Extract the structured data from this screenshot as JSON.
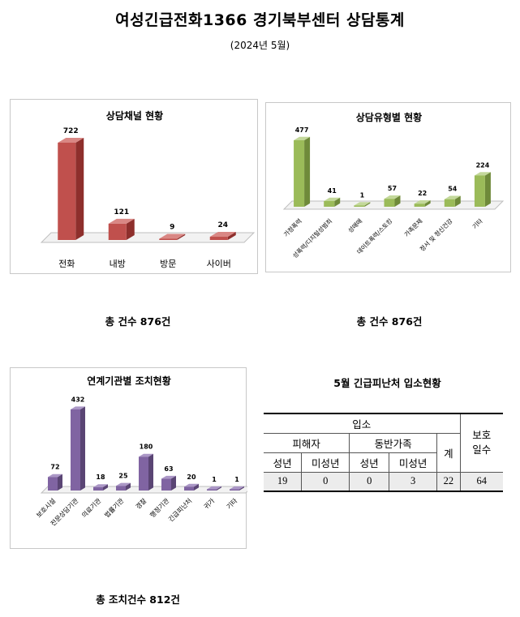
{
  "header": {
    "title": "여성긴급전화1366 경기북부센터 상담통계",
    "subtitle": "(2024년 5월)"
  },
  "chart_data": [
    {
      "type": "bar",
      "title": "상담채널 현황",
      "categories": [
        "전화",
        "내방",
        "방문",
        "사이버"
      ],
      "values": [
        722,
        121,
        9,
        24
      ],
      "ylim": [
        0,
        722
      ],
      "color": "#c0504d",
      "color_side": "#8e2f2c",
      "color_top": "#d98784",
      "legend": "none",
      "grid": false
    },
    {
      "type": "bar",
      "title": "상담유형별 현황",
      "categories": [
        "가정폭력",
        "성폭력/디지털성범죄",
        "성매매",
        "데이트폭력/스토킹",
        "가족문제",
        "정서 및 정신건강",
        "기타"
      ],
      "values": [
        477,
        41,
        1,
        57,
        22,
        54,
        224
      ],
      "ylim": [
        0,
        477
      ],
      "color": "#9bbb59",
      "color_side": "#6f8a3a",
      "color_top": "#c3d89a",
      "legend": "none",
      "grid": false
    },
    {
      "type": "bar",
      "title": "연계기관별 조치현황",
      "categories": [
        "보호시설",
        "전문상담기관",
        "의료기관",
        "법률기관",
        "경찰",
        "행정기관",
        "긴급피난처",
        "귀가",
        "기타"
      ],
      "values": [
        72,
        432,
        18,
        25,
        180,
        63,
        20,
        1,
        1
      ],
      "ylim": [
        0,
        432
      ],
      "color": "#8064a2",
      "color_side": "#5a4574",
      "color_top": "#ab97c6",
      "legend": "none",
      "grid": false
    }
  ],
  "totals": {
    "channel": "총 건수 876건",
    "type": "총 건수 876건",
    "action": "총 조치건수 812건"
  },
  "shelter": {
    "title": "5월 긴급피난처 입소현황",
    "admission": "입소",
    "victim": "피해자",
    "family": "동반가족",
    "sum": "계",
    "protect_days": "보호\n일수",
    "adult": "성년",
    "minor": "미성년",
    "values": [
      "19",
      "0",
      "0",
      "3",
      "22",
      "64"
    ]
  }
}
